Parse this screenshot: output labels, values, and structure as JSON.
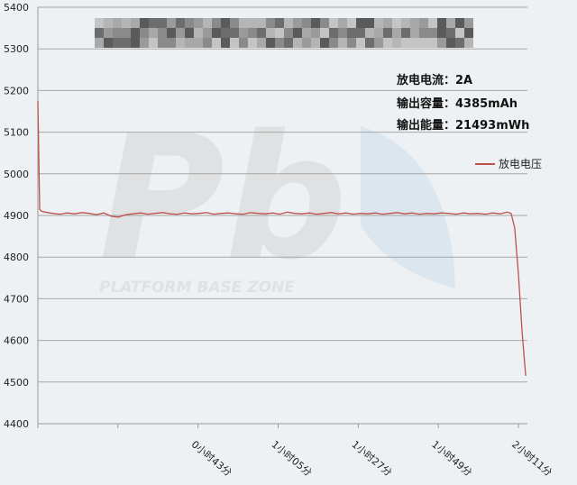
{
  "chart_data": {
    "type": "line",
    "title": "",
    "xlabel": "",
    "ylabel": "",
    "ylim": [
      4400,
      5400
    ],
    "yticks": [
      4400,
      4500,
      4600,
      4700,
      4800,
      4900,
      5000,
      5100,
      5200,
      5300,
      5400
    ],
    "xlim_minutes": [
      0,
      131
    ],
    "xtick_labels": [
      "",
      "",
      "0小时43分",
      "1小时05分",
      "1小时27分",
      "1小时49分",
      "2小时11分"
    ],
    "grid": true,
    "legend_position": "right",
    "series": [
      {
        "name": "放电电压",
        "color": "#c0504d",
        "x_minutes": [
          0,
          0.5,
          1,
          2,
          4,
          6,
          8,
          10,
          12,
          14,
          16,
          18,
          20,
          22,
          24,
          26,
          28,
          30,
          32,
          34,
          36,
          38,
          40,
          42,
          44,
          46,
          48,
          50,
          52,
          54,
          56,
          58,
          60,
          62,
          64,
          66,
          68,
          70,
          72,
          74,
          76,
          78,
          80,
          82,
          84,
          86,
          88,
          90,
          92,
          94,
          96,
          98,
          100,
          102,
          104,
          106,
          108,
          110,
          112,
          114,
          116,
          118,
          120,
          122,
          124,
          126,
          128,
          129,
          130,
          131,
          132,
          133
        ],
        "values": [
          5175,
          4915,
          4910,
          4908,
          4905,
          4903,
          4906,
          4904,
          4907,
          4905,
          4902,
          4906,
          4898,
          4896,
          4902,
          4904,
          4906,
          4903,
          4905,
          4907,
          4904,
          4903,
          4906,
          4904,
          4905,
          4907,
          4903,
          4905,
          4906,
          4904,
          4903,
          4907,
          4905,
          4904,
          4906,
          4903,
          4908,
          4905,
          4904,
          4906,
          4903,
          4905,
          4907,
          4904,
          4906,
          4903,
          4905,
          4904,
          4906,
          4903,
          4905,
          4907,
          4904,
          4906,
          4903,
          4905,
          4904,
          4906,
          4905,
          4903,
          4906,
          4904,
          4905,
          4903,
          4906,
          4904,
          4908,
          4905,
          4870,
          4760,
          4620,
          4515
        ]
      }
    ],
    "annotations": [
      "放电电流：2A",
      "输出容量：4385mAh",
      "输出能量：21493mWh"
    ]
  },
  "watermark": {
    "logo_text": "Pb",
    "logo_subtext": "PLATFORM BASE ZONE",
    "site_logo": "小黑游戏 www.xiaohei.com"
  }
}
